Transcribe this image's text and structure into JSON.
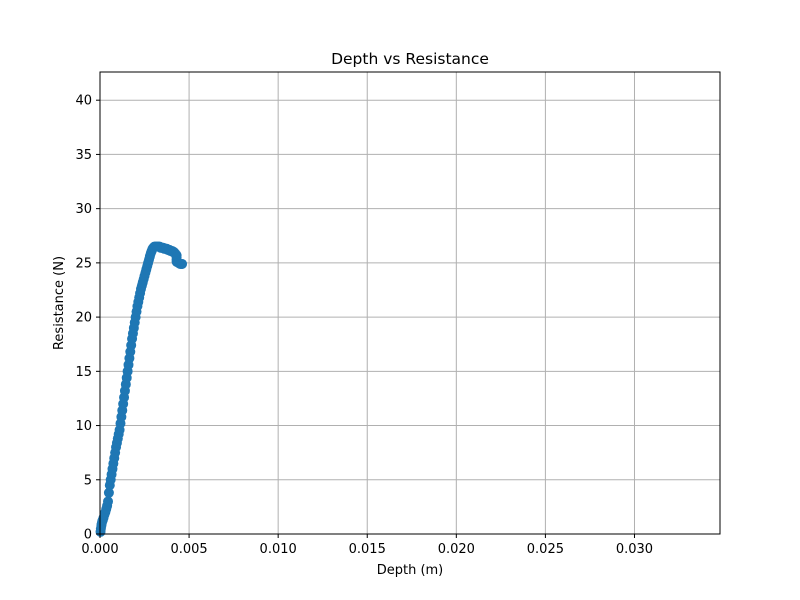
{
  "chart_data": {
    "type": "scatter",
    "title": "Depth vs Resistance",
    "xlabel": "Depth (m)",
    "ylabel": "Resistance (N)",
    "xlim": [
      0,
      0.0348
    ],
    "ylim": [
      0,
      42.6
    ],
    "xticks": [
      0.0,
      0.005,
      0.01,
      0.015,
      0.02,
      0.025,
      0.03
    ],
    "xtick_labels": [
      "0.000",
      "0.005",
      "0.010",
      "0.015",
      "0.020",
      "0.025",
      "0.030"
    ],
    "yticks": [
      0,
      5,
      10,
      15,
      20,
      25,
      30,
      35,
      40
    ],
    "ytick_labels": [
      "0",
      "5",
      "10",
      "15",
      "20",
      "25",
      "30",
      "35",
      "40"
    ],
    "grid": true,
    "marker_color": "#1f77b4",
    "series": [
      {
        "name": "Resistance",
        "x": [
          3e-05,
          5e-05,
          8e-05,
          0.0001,
          0.00013,
          0.00016,
          0.0002,
          0.00025,
          0.0003,
          0.00035,
          0.0004,
          0.00045,
          0.0005,
          0.00055,
          0.0006,
          0.00065,
          0.0007,
          0.00075,
          0.0008,
          0.00085,
          0.0009,
          0.00095,
          0.001,
          0.00105,
          0.0011,
          0.00115,
          0.0012,
          0.00125,
          0.0013,
          0.00135,
          0.0014,
          0.00145,
          0.0015,
          0.00155,
          0.0016,
          0.00165,
          0.0017,
          0.00175,
          0.0018,
          0.00185,
          0.0019,
          0.00195,
          0.002,
          0.00205,
          0.0021,
          0.00215,
          0.0022,
          0.00225,
          0.0023,
          0.00235,
          0.0024,
          0.00245,
          0.0025,
          0.00255,
          0.0026,
          0.00265,
          0.0027,
          0.00275,
          0.0028,
          0.00285,
          0.0029,
          0.00295,
          0.003,
          0.00305,
          0.0031,
          0.00315,
          0.0032,
          0.00325,
          0.0033,
          0.00335,
          0.0034,
          0.00345,
          0.0035,
          0.00355,
          0.0036,
          0.00365,
          0.0037,
          0.00375,
          0.0038,
          0.00385,
          0.0039,
          0.00395,
          0.004,
          0.00405,
          0.0041,
          0.00415,
          0.0042,
          0.00425,
          0.0043,
          0.0043,
          0.0043,
          0.0043,
          0.0044,
          0.0045,
          0.0046,
          0.0046
        ],
        "y": [
          0.2,
          0.5,
          0.8,
          1.0,
          1.2,
          1.3,
          1.5,
          1.8,
          2.0,
          2.3,
          2.6,
          3.0,
          3.8,
          4.5,
          5.0,
          5.5,
          6.0,
          6.5,
          7.0,
          7.5,
          8.0,
          8.4,
          8.8,
          9.2,
          9.6,
          10.2,
          10.8,
          11.4,
          12.0,
          12.6,
          13.2,
          13.8,
          14.4,
          15.0,
          15.6,
          16.2,
          16.8,
          17.4,
          18.0,
          18.5,
          19.0,
          19.5,
          20.0,
          20.5,
          21.0,
          21.4,
          21.8,
          22.2,
          22.6,
          22.9,
          23.2,
          23.5,
          23.8,
          24.1,
          24.4,
          24.7,
          25.0,
          25.3,
          25.6,
          25.9,
          26.1,
          26.3,
          26.4,
          26.5,
          26.5,
          26.5,
          26.5,
          26.5,
          26.5,
          26.5,
          26.4,
          26.4,
          26.4,
          26.4,
          26.3,
          26.3,
          26.3,
          26.3,
          26.2,
          26.2,
          26.2,
          26.1,
          26.1,
          26.1,
          26.0,
          26.0,
          25.9,
          25.8,
          25.7,
          25.5,
          25.3,
          25.1,
          25.0,
          24.9,
          24.9,
          24.9
        ]
      }
    ]
  }
}
